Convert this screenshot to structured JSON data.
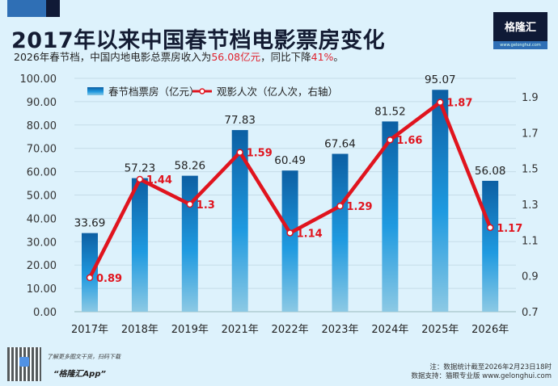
{
  "header": {
    "title": "2017年以来中国春节档电影票房变化",
    "subtitle_pre": "2026年春节档，中国内地电影总票房收入为",
    "subtitle_hl1": "56.08亿元",
    "subtitle_mid": "，同比下降",
    "subtitle_hl2": "41%",
    "subtitle_post": "。",
    "logo_text": "格隆汇",
    "logo_url": "www.gelonghui.com"
  },
  "chart_data": {
    "type": "bar+line",
    "categories": [
      "2017年",
      "2018年",
      "2019年",
      "2021年",
      "2022年",
      "2023年",
      "2024年",
      "2025年",
      "2026年"
    ],
    "series": [
      {
        "name": "春节档票房（亿元）",
        "type": "bar",
        "axis": "left",
        "values": [
          33.69,
          57.23,
          58.26,
          77.83,
          60.49,
          67.64,
          81.52,
          95.07,
          56.08
        ],
        "labels": [
          "33.69",
          "57.23",
          "58.26",
          "77.83",
          "60.49",
          "67.64",
          "81.52",
          "95.07",
          "56.08"
        ],
        "color": "#1b8fd6"
      },
      {
        "name": "观影人次（亿人次，右轴）",
        "type": "line",
        "axis": "right",
        "values": [
          0.89,
          1.44,
          1.3,
          1.59,
          1.14,
          1.29,
          1.66,
          1.87,
          1.17
        ],
        "labels": [
          "0.89",
          "1.44",
          "1.3",
          "1.59",
          "1.14",
          "1.29",
          "1.66",
          "1.87",
          "1.17"
        ],
        "color": "#e0141e"
      }
    ],
    "y_left": {
      "range": [
        0,
        100
      ],
      "ticks": [
        "0.00",
        "10.00",
        "20.00",
        "30.00",
        "40.00",
        "50.00",
        "60.00",
        "70.00",
        "80.00",
        "90.00",
        "100.00"
      ]
    },
    "y_right": {
      "range": [
        0.7,
        1.9
      ],
      "ticks": [
        "0.7",
        "0.9",
        "1.1",
        "1.3",
        "1.5",
        "1.7",
        "1.9"
      ]
    },
    "grid": true,
    "legend": "top-left"
  },
  "footer": {
    "qr_text": "了解更多图文干货，扫码下载",
    "app_name": "“格隆汇App”",
    "note": "注：数据统计截至2026年2月23日18时",
    "source": "数据支持：猫眼专业版  www.gelonghui.com"
  }
}
